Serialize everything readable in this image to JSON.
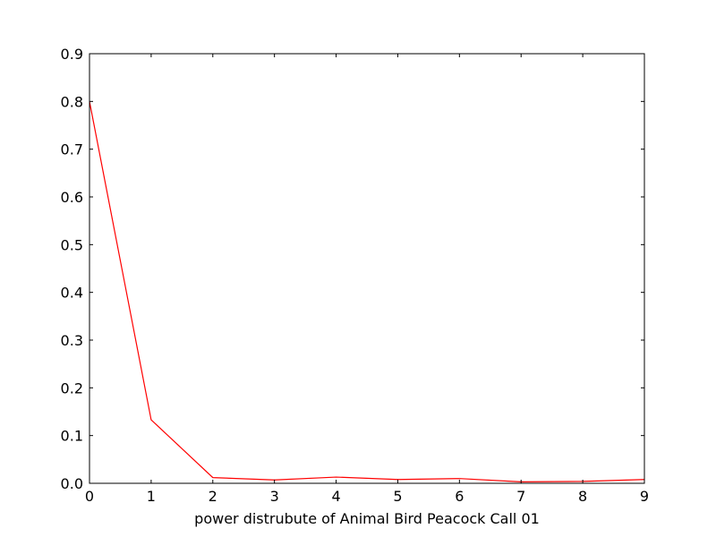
{
  "chart_data": {
    "type": "line",
    "title": "",
    "xlabel": "power distrubute of Animal Bird Peacock Call 01",
    "ylabel": "",
    "xlim": [
      0,
      9
    ],
    "ylim": [
      0,
      0.9
    ],
    "xticks": [
      "0",
      "1",
      "2",
      "3",
      "4",
      "5",
      "6",
      "7",
      "8",
      "9"
    ],
    "yticks": [
      "0.0",
      "0.1",
      "0.2",
      "0.3",
      "0.4",
      "0.5",
      "0.6",
      "0.7",
      "0.8",
      "0.9"
    ],
    "grid": false,
    "series": [
      {
        "color": "#ff0000",
        "x": [
          0,
          1,
          2,
          3,
          4,
          5,
          6,
          7,
          8,
          9
        ],
        "y": [
          0.8,
          0.133,
          0.012,
          0.007,
          0.013,
          0.008,
          0.01,
          0.003,
          0.004,
          0.008
        ]
      }
    ]
  }
}
